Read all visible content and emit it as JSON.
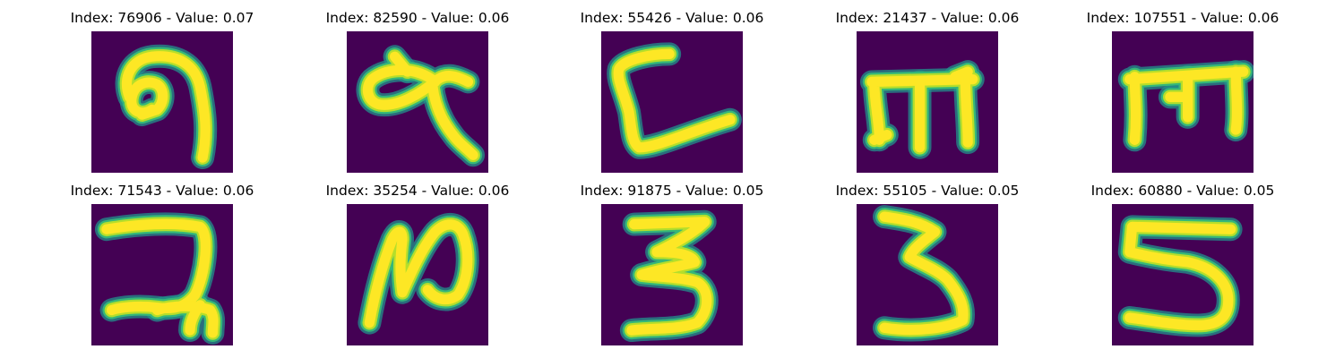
{
  "colors": {
    "background": "#440154",
    "stroke_core": "#fde725",
    "stroke_mid": "#b5de2b",
    "stroke_edge": "#35b779",
    "stroke_outer": "#21918c"
  },
  "images": [
    {
      "title": "Index: 76906 - Value: 0.07",
      "glyph": "nine"
    },
    {
      "title": "Index: 82590 - Value: 0.06",
      "glyph": "alpha-x"
    },
    {
      "title": "Index: 55426 - Value: 0.06",
      "glyph": "c-bracket"
    },
    {
      "title": "Index: 21437 - Value: 0.06",
      "glyph": "m-serif"
    },
    {
      "title": "Index: 107551 - Value: 0.06",
      "glyph": "m-block"
    },
    {
      "title": "Index: 71543 - Value: 0.06",
      "glyph": "z-hook"
    },
    {
      "title": "Index: 35254 - Value: 0.06",
      "glyph": "n-loop"
    },
    {
      "title": "Index: 91875 - Value: 0.05",
      "glyph": "three-a"
    },
    {
      "title": "Index: 55105 - Value: 0.05",
      "glyph": "three-b"
    },
    {
      "title": "Index: 60880 - Value: 0.05",
      "glyph": "five"
    }
  ]
}
